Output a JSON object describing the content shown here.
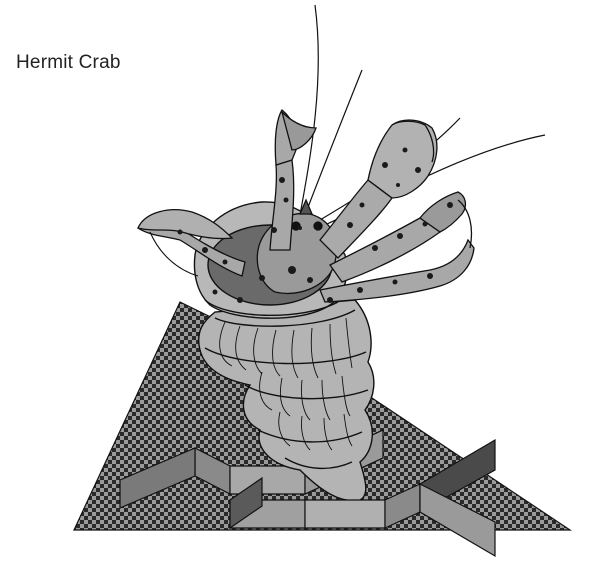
{
  "title": "Hermit Crab",
  "colors": {
    "checker_dark": "#2a2a2a",
    "checker_light": "#9a9a9a",
    "shell_fill": "#b4b4b4",
    "crab_fill": "#a8a8a8",
    "outline": "#111111",
    "wall_fill": "#9c9c9c",
    "wall_dark": "#4a4a4a"
  }
}
